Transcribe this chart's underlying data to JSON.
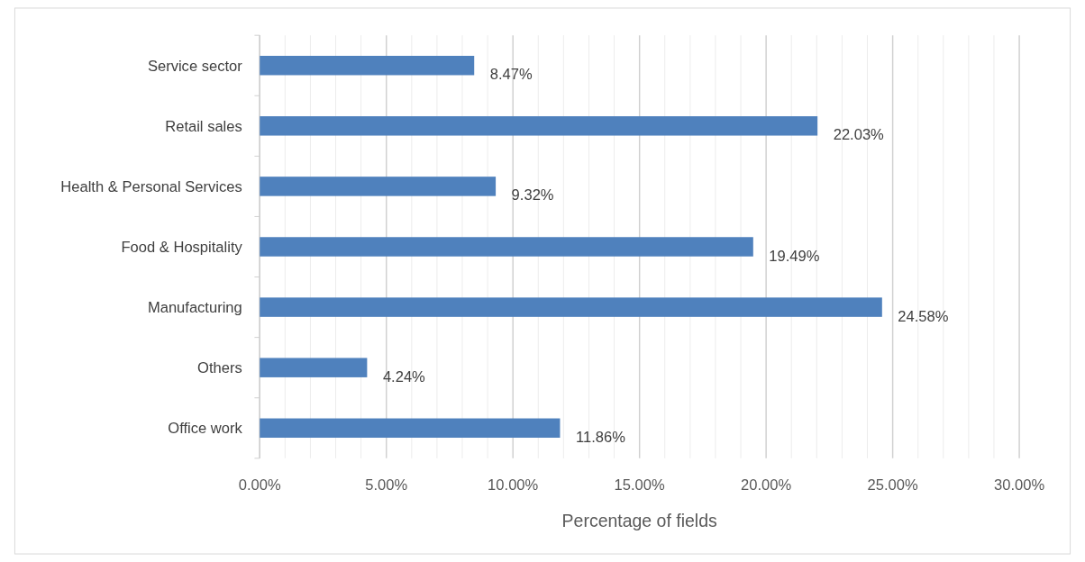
{
  "chart_data": {
    "type": "bar",
    "orientation": "horizontal",
    "xlabel": "Percentage of fields",
    "categories": [
      "Service sector",
      "Retail sales",
      "Health & Personal Services",
      "Food & Hospitality",
      "Manufacturing",
      "Others",
      "Office work"
    ],
    "values": [
      8.47,
      22.03,
      9.32,
      19.49,
      24.58,
      4.24,
      11.86
    ],
    "value_labels": [
      "8.47%",
      "22.03%",
      "9.32%",
      "19.49%",
      "24.58%",
      "4.24%",
      "11.86%"
    ],
    "color": "#4f81bd",
    "xlim": [
      0,
      30
    ],
    "xticks": [
      {
        "value": 0,
        "label": "0.00%"
      },
      {
        "value": 1,
        "label": null
      },
      {
        "value": 2,
        "label": null
      },
      {
        "value": 3,
        "label": null
      },
      {
        "value": 4,
        "label": null
      },
      {
        "value": 5,
        "label": "5.00%"
      },
      {
        "value": 6,
        "label": null
      },
      {
        "value": 7,
        "label": null
      },
      {
        "value": 8,
        "label": null
      },
      {
        "value": 9,
        "label": null
      },
      {
        "value": 10,
        "label": "10.00%"
      },
      {
        "value": 11,
        "label": null
      },
      {
        "value": 12,
        "label": null
      },
      {
        "value": 13,
        "label": null
      },
      {
        "value": 14,
        "label": null
      },
      {
        "value": 15,
        "label": "15.00%"
      },
      {
        "value": 16,
        "label": null
      },
      {
        "value": 17,
        "label": null
      },
      {
        "value": 18,
        "label": null
      },
      {
        "value": 19,
        "label": null
      },
      {
        "value": 20,
        "label": "20.00%"
      },
      {
        "value": 21,
        "label": null
      },
      {
        "value": 22,
        "label": null
      },
      {
        "value": 23,
        "label": null
      },
      {
        "value": 24,
        "label": null
      },
      {
        "value": 25,
        "label": "25.00%"
      },
      {
        "value": 26,
        "label": null
      },
      {
        "value": 27,
        "label": null
      },
      {
        "value": 28,
        "label": null
      },
      {
        "value": 29,
        "label": null
      },
      {
        "value": 30,
        "label": "30.00%"
      }
    ],
    "grid": true
  }
}
